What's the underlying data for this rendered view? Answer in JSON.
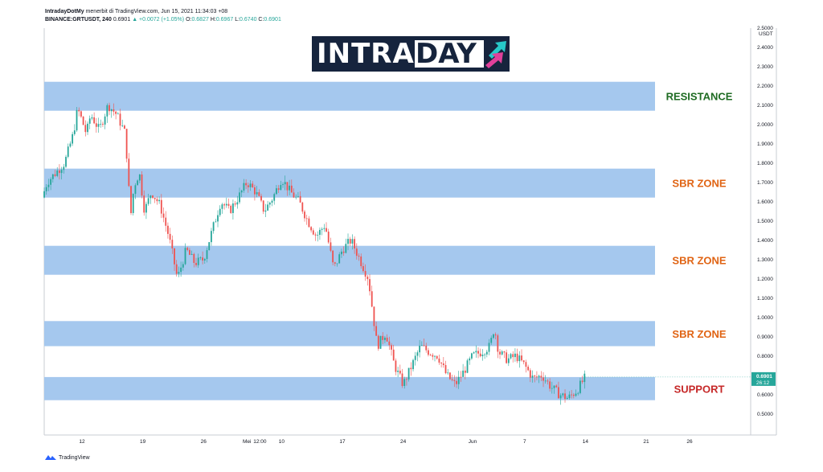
{
  "header": {
    "line1_author": "IntradayDotMy",
    "line1_rest": "menerbit di TradingView.com, Jun 15, 2021 11:34:03 +08",
    "line2_symbol": "BINANCE:GRTUSDT, 240",
    "line2_price": "0.6901",
    "line2_change": "▲ +0.0072 (+1.05%)",
    "ohlc": {
      "o_label": "O:",
      "o": "0.6827",
      "h_label": "H:",
      "h": "0.6967",
      "l_label": "L:",
      "l": "0.6740",
      "c_label": "C:",
      "c": "0.6901"
    }
  },
  "logo": {
    "part1": "INTRA",
    "part2": "DAY"
  },
  "footer": {
    "brand": "TradingView"
  },
  "colors": {
    "zone": "#a5c8ee",
    "bull": "#26a69a",
    "bear": "#ef5350",
    "resistance": "#1e6b22",
    "sbr": "#e06414",
    "support": "#c62828",
    "price_tag": "#26a69a"
  },
  "chart_data": {
    "type": "candlestick",
    "currency_label": "USDT",
    "ylim": [
      0.45,
      2.55
    ],
    "yticks": [
      "2.5000",
      "2.4000",
      "2.3000",
      "2.2000",
      "2.1000",
      "2.0000",
      "1.9000",
      "1.8000",
      "1.7000",
      "1.6000",
      "1.5000",
      "1.4000",
      "1.3000",
      "1.2000",
      "1.1000",
      "1.0000",
      "0.9000",
      "0.8000",
      "0.7000",
      "0.6000",
      "0.5000"
    ],
    "xticks": [
      {
        "label": "12",
        "day": 12
      },
      {
        "label": "19",
        "day": 19
      },
      {
        "label": "26",
        "day": 26
      },
      {
        "label": "Mei",
        "day": 31
      },
      {
        "label": "12:00",
        "day": 32.5
      },
      {
        "label": "10",
        "day": 35
      },
      {
        "label": "17",
        "day": 42
      },
      {
        "label": "24",
        "day": 49
      },
      {
        "label": "Jun",
        "day": 57
      },
      {
        "label": "7",
        "day": 63
      },
      {
        "label": "14",
        "day": 70
      },
      {
        "label": "21",
        "day": 77
      },
      {
        "label": "26",
        "day": 82
      }
    ],
    "zones": [
      {
        "label": "RESISTANCE",
        "low": 2.07,
        "high": 2.22,
        "kind": "resistance"
      },
      {
        "label": "SBR ZONE",
        "low": 1.62,
        "high": 1.77,
        "kind": "sbr"
      },
      {
        "label": "SBR ZONE",
        "low": 1.22,
        "high": 1.37,
        "kind": "sbr"
      },
      {
        "label": "SBR ZONE",
        "low": 0.85,
        "high": 0.98,
        "kind": "sbr"
      },
      {
        "label": "SUPPORT",
        "low": 0.57,
        "high": 0.69,
        "kind": "support"
      }
    ],
    "last_price": "0.6901",
    "countdown": "26:12",
    "price_path": [
      [
        7.4,
        1.62
      ],
      [
        8,
        1.7
      ],
      [
        9,
        1.75
      ],
      [
        10,
        1.8
      ],
      [
        11,
        1.95
      ],
      [
        11.5,
        2.08
      ],
      [
        12,
        2.02
      ],
      [
        12.5,
        1.95
      ],
      [
        13,
        2.05
      ],
      [
        14,
        1.97
      ],
      [
        15,
        2.1
      ],
      [
        16,
        2.05
      ],
      [
        17,
        1.95
      ],
      [
        17.6,
        1.52
      ],
      [
        18,
        1.68
      ],
      [
        18.6,
        1.75
      ],
      [
        19.2,
        1.55
      ],
      [
        20,
        1.65
      ],
      [
        21,
        1.58
      ],
      [
        22,
        1.42
      ],
      [
        23,
        1.2
      ],
      [
        24,
        1.35
      ],
      [
        25,
        1.28
      ],
      [
        26,
        1.3
      ],
      [
        27,
        1.45
      ],
      [
        28,
        1.6
      ],
      [
        29,
        1.55
      ],
      [
        30,
        1.62
      ],
      [
        31,
        1.7
      ],
      [
        32,
        1.65
      ],
      [
        33,
        1.55
      ],
      [
        34,
        1.62
      ],
      [
        35,
        1.72
      ],
      [
        36,
        1.65
      ],
      [
        37,
        1.6
      ],
      [
        38,
        1.5
      ],
      [
        39,
        1.42
      ],
      [
        40,
        1.48
      ],
      [
        41,
        1.25
      ],
      [
        42,
        1.35
      ],
      [
        43,
        1.4
      ],
      [
        44,
        1.3
      ],
      [
        45,
        1.2
      ],
      [
        46,
        0.85
      ],
      [
        47,
        0.92
      ],
      [
        48,
        0.75
      ],
      [
        49,
        0.65
      ],
      [
        50,
        0.75
      ],
      [
        51,
        0.85
      ],
      [
        52,
        0.82
      ],
      [
        53,
        0.8
      ],
      [
        54,
        0.7
      ],
      [
        55,
        0.65
      ],
      [
        56,
        0.72
      ],
      [
        57,
        0.8
      ],
      [
        58,
        0.82
      ],
      [
        59,
        0.85
      ],
      [
        59.5,
        0.95
      ],
      [
        60,
        0.82
      ],
      [
        61,
        0.78
      ],
      [
        62,
        0.8
      ],
      [
        63,
        0.75
      ],
      [
        64,
        0.68
      ],
      [
        65,
        0.7
      ],
      [
        66,
        0.64
      ],
      [
        67,
        0.6
      ],
      [
        68,
        0.58
      ],
      [
        69,
        0.62
      ],
      [
        70,
        0.69
      ]
    ]
  }
}
